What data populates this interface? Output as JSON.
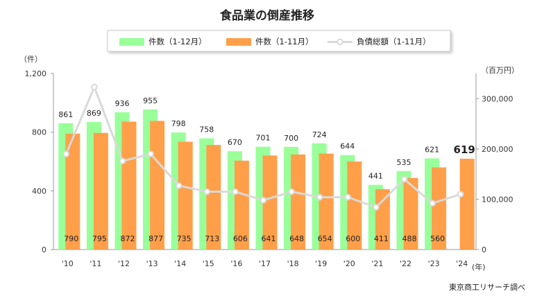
{
  "chart_data": {
    "type": "bar",
    "title": "食品業の倒産推移",
    "categories": [
      "'10",
      "'11",
      "'12",
      "'13",
      "'14",
      "'15",
      "'16",
      "'17",
      "'18",
      "'19",
      "'20",
      "'21",
      "'22",
      "'23",
      "'24"
    ],
    "series": [
      {
        "name": "件数（1-12月）",
        "kind": "bar",
        "axis": "left",
        "color": "#99FF99",
        "values": [
          861,
          869,
          936,
          955,
          798,
          758,
          670,
          701,
          700,
          724,
          644,
          441,
          535,
          621,
          null
        ]
      },
      {
        "name": "件数（1-11月）",
        "kind": "bar",
        "axis": "left",
        "color": "#FF9F4A",
        "values": [
          790,
          795,
          872,
          877,
          735,
          713,
          606,
          641,
          648,
          654,
          600,
          411,
          488,
          560,
          619
        ]
      },
      {
        "name": "負債総額（1-11月）",
        "kind": "line",
        "axis": "right",
        "color": "#D9D9D9",
        "values": [
          190000,
          323000,
          176000,
          190000,
          127000,
          115000,
          115000,
          98000,
          115000,
          104000,
          104000,
          84000,
          140000,
          92000,
          110000
        ]
      }
    ],
    "highlight_label": "619",
    "left_axis": {
      "unit": "（件）",
      "ylim": [
        0,
        1200
      ],
      "ticks": [
        0,
        400,
        800,
        1200
      ],
      "tick_labels": [
        "0",
        "400",
        "800",
        "1,200"
      ]
    },
    "right_axis": {
      "unit": "（百万円）",
      "ylim": [
        0,
        350000
      ],
      "ticks": [
        0,
        100000,
        200000,
        300000
      ],
      "tick_labels": [
        "0",
        "100,000",
        "200,000",
        "300,000"
      ]
    },
    "x_unit": "(年)",
    "legend_position": "top",
    "grid": false,
    "source": "東京商工リサーチ調べ"
  }
}
